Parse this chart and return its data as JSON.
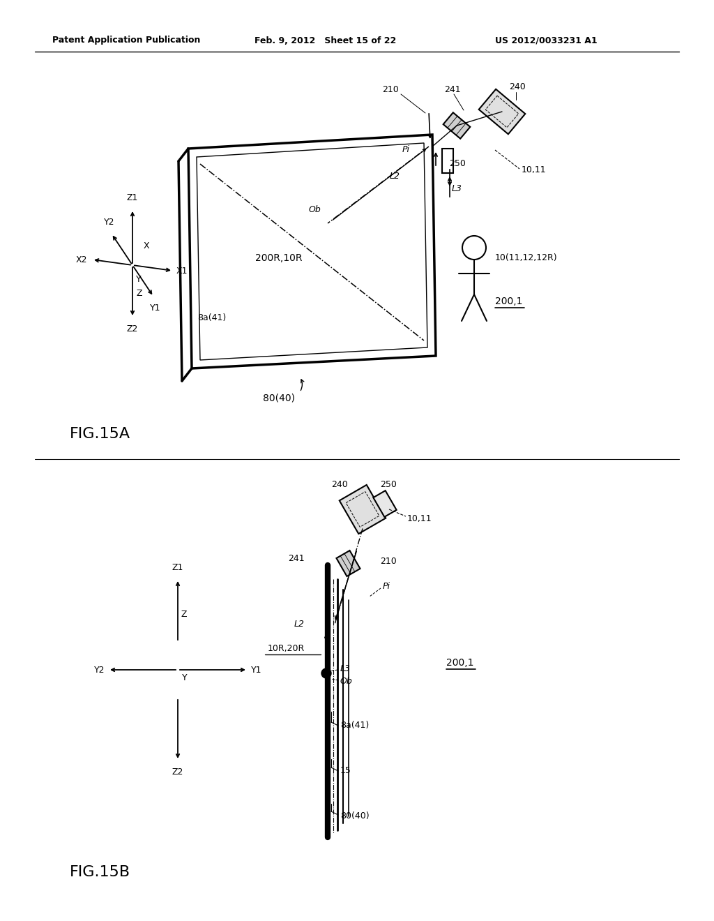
{
  "bg_color": "#ffffff",
  "header_left": "Patent Application Publication",
  "header_mid": "Feb. 9, 2012   Sheet 15 of 22",
  "header_right": "US 2012/0033231 A1",
  "fig_label_a": "FIG.15A",
  "fig_label_b": "FIG.15B"
}
